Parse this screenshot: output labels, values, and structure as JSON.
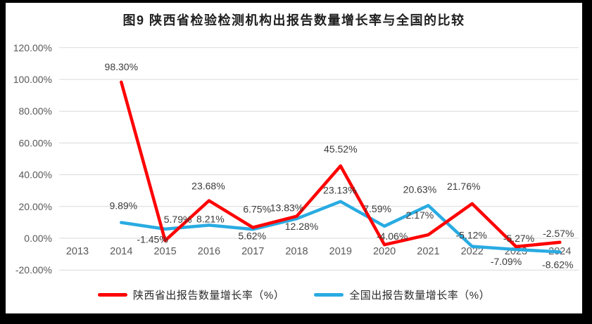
{
  "title": "图9  陕西省检验检测机构出报告数量增长率与全国的比较",
  "colors": {
    "shaanxi_red": "#FE0000",
    "national_blue": "#29ABE2",
    "gridline": "#D9D9D9",
    "axis_text": "#595959",
    "data_label_text": "#3B3B3B",
    "background": "#FFFFFF",
    "frame": "#000000"
  },
  "chart_data": {
    "type": "line",
    "title": "图9  陕西省检验检测机构出报告数量增长率与全国的比较",
    "categories": [
      "2013",
      "2014",
      "2015",
      "2016",
      "2017",
      "2018",
      "2019",
      "2020",
      "2021",
      "2022",
      "2023",
      "2024"
    ],
    "xlabel": "",
    "ylabel": "",
    "ylim": [
      -20,
      120
    ],
    "grid": true,
    "legend_position": "bottom",
    "yticks": [
      {
        "value": 120,
        "label": "120.00%"
      },
      {
        "value": 100,
        "label": "100.00%"
      },
      {
        "value": 80,
        "label": "80.00%"
      },
      {
        "value": 60,
        "label": "60.00%"
      },
      {
        "value": 40,
        "label": "40.00%"
      },
      {
        "value": 20,
        "label": "20.00%"
      },
      {
        "value": 0,
        "label": "0.00%"
      },
      {
        "value": -20,
        "label": "-20.00%"
      }
    ],
    "series": [
      {
        "name": "陕西省出报告数量增长率（%）",
        "color": "#FE0000",
        "values": [
          null,
          98.3,
          -1.45,
          23.68,
          6.75,
          13.83,
          45.52,
          -4.06,
          2.17,
          21.76,
          -5.27,
          -2.57
        ],
        "labels": [
          null,
          "98.30%",
          "-1.45%",
          "23.68%",
          "6.75%",
          "13.83%",
          "45.52%",
          "-4.06%",
          "2.17%",
          "21.76%",
          "-5.27%",
          "-2.57%"
        ],
        "label_offsets": [
          null,
          [
            0,
            -22
          ],
          [
            -18,
            -2
          ],
          [
            -1,
            -21
          ],
          [
            6,
            -26
          ],
          [
            -14,
            -12
          ],
          [
            0,
            -24
          ],
          [
            11,
            -12
          ],
          [
            -12,
            -28
          ],
          [
            -12,
            -25
          ],
          [
            4,
            -12
          ],
          [
            -2,
            -13
          ]
        ]
      },
      {
        "name": "全国出报告数量增长率（%）",
        "color": "#29ABE2",
        "values": [
          null,
          9.89,
          5.79,
          8.21,
          5.62,
          12.28,
          23.13,
          7.59,
          20.63,
          -5.12,
          -7.09,
          -8.62
        ],
        "labels": [
          null,
          "9.89%",
          "5.79%",
          "8.21%",
          "5.62%",
          "12.28%",
          "23.13%",
          "7.59%",
          "20.63%",
          "-5.12%",
          "-7.09%",
          "-8.62%"
        ],
        "label_offsets": [
          null,
          [
            3,
            -24
          ],
          [
            18,
            -14
          ],
          [
            2,
            -9
          ],
          [
            -1,
            9
          ],
          [
            7,
            11
          ],
          [
            -1,
            -16
          ],
          [
            -10,
            -25
          ],
          [
            -12,
            -23
          ],
          [
            -1,
            -16
          ],
          [
            -14,
            17
          ],
          [
            -3,
            18
          ]
        ]
      }
    ]
  }
}
